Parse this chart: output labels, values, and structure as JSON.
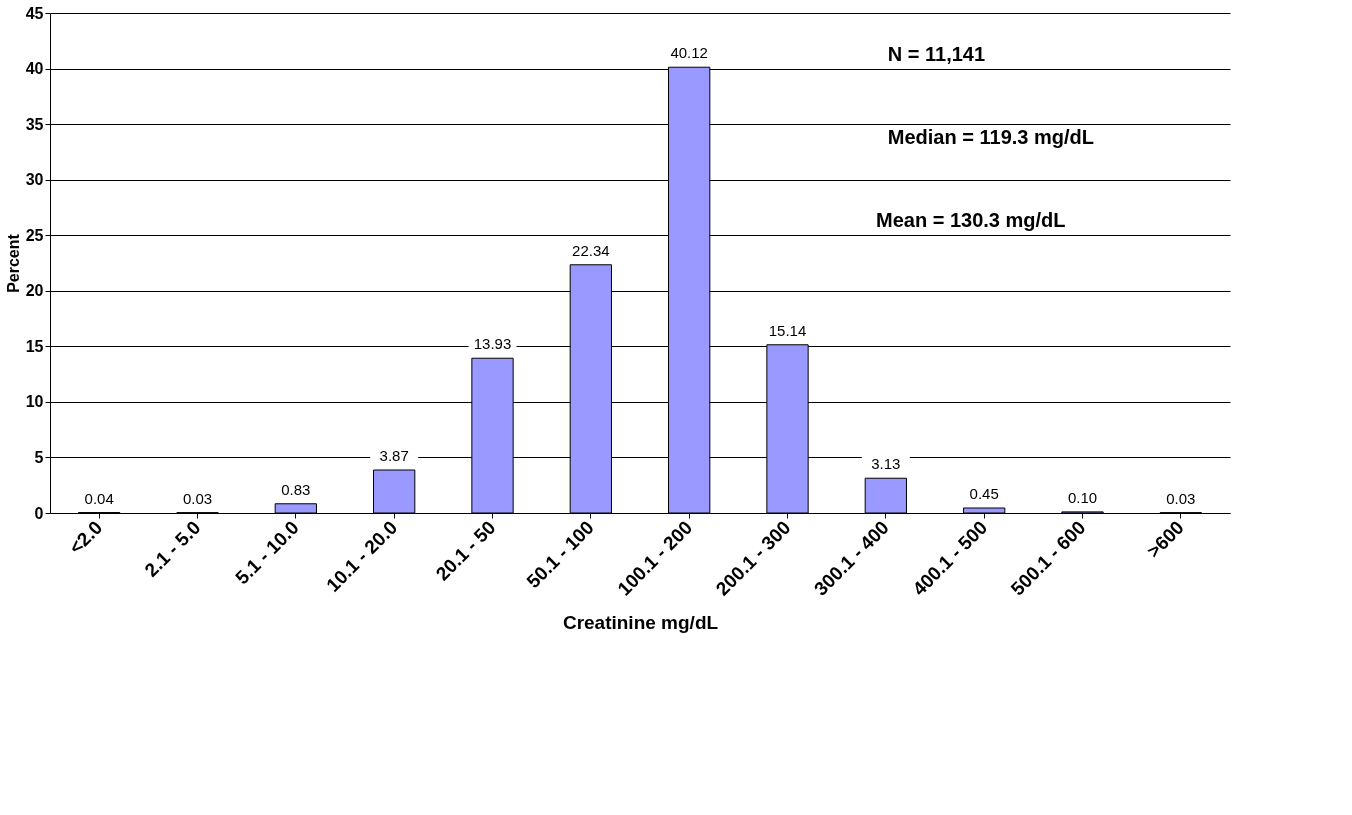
{
  "chart_data": {
    "type": "bar",
    "xlabel": "Creatinine mg/dL",
    "ylabel": "Percent",
    "categories": [
      "<2.0",
      "2.1 - 5.0",
      "5.1 - 10.0",
      "10.1 - 20.0",
      "20.1 - 50",
      "50.1 - 100",
      "100.1 - 200",
      "200.1 - 300",
      "300.1 - 400",
      "400.1 - 500",
      "500.1 - 600",
      ">600"
    ],
    "values": [
      0.04,
      0.03,
      0.83,
      3.87,
      13.93,
      22.34,
      40.12,
      15.14,
      3.13,
      0.45,
      0.1,
      0.03
    ],
    "value_labels": [
      "0.04",
      "0.03",
      "0.83",
      "3.87",
      "13.93",
      "22.34",
      "40.12",
      "15.14",
      "3.13",
      "0.45",
      "0.10",
      "0.03"
    ],
    "color": "#9999ff",
    "ylim": [
      0,
      45
    ],
    "yticks": [
      0,
      5,
      10,
      15,
      20,
      25,
      30,
      35,
      40,
      45
    ],
    "grid": "y",
    "annotations": [
      "N = 11,141",
      "Median = 119.3  mg/dL",
      "Mean = 130.3 mg/dL"
    ]
  }
}
